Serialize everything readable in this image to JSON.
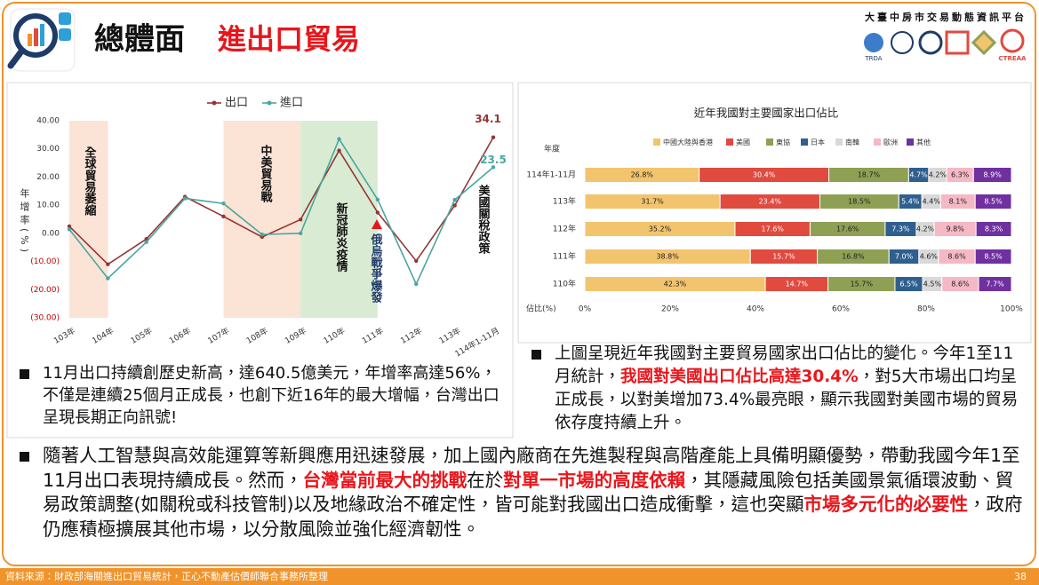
{
  "header": {
    "title": "總體面",
    "subtitle": "進出口貿易",
    "platform": "大臺中房市交易動態資訊平台",
    "logos": [
      "TRDA",
      "CTREAA"
    ]
  },
  "chart_data": [
    {
      "type": "line",
      "categories": [
        "103年",
        "104年",
        "105年",
        "106年",
        "107年",
        "108年",
        "109年",
        "110年",
        "111年",
        "112年",
        "113年",
        "114年1-11月"
      ],
      "y_label": "年增率(%)",
      "series": [
        {
          "name": "出口",
          "color": "#943634",
          "values": [
            2.5,
            -11,
            -2,
            13,
            6,
            -1.3,
            4.9,
            29.4,
            7.4,
            -9.8,
            9.9,
            34.1
          ],
          "value_labels": [
            null,
            null,
            null,
            null,
            null,
            null,
            null,
            null,
            null,
            null,
            null,
            "34.1"
          ]
        },
        {
          "name": "進口",
          "color": "#4aa6a0",
          "values": [
            1.4,
            -16,
            -3.1,
            12.4,
            10.6,
            -0.4,
            0,
            33.5,
            12,
            -18,
            11.9,
            23.5
          ],
          "value_labels": [
            null,
            null,
            null,
            null,
            null,
            null,
            null,
            null,
            null,
            null,
            null,
            "23.5"
          ]
        }
      ],
      "ylim": [
        -30,
        40
      ],
      "yticks": [
        {
          "value": 40,
          "label": "40.00"
        },
        {
          "value": 30,
          "label": "30.00"
        },
        {
          "value": 20,
          "label": "20.00"
        },
        {
          "value": 10,
          "label": "10.00"
        },
        {
          "value": 0,
          "label": "0.00"
        },
        {
          "value": -10,
          "label": "(10.00)"
        },
        {
          "value": -20,
          "label": "(20.00)"
        },
        {
          "value": -30,
          "label": "(30.00)"
        }
      ],
      "grid": false,
      "legend": "top",
      "annotations": [
        {
          "text": "全球貿易萎縮"
        },
        {
          "text": "中美貿易戰"
        },
        {
          "text": "新冠肺炎疫情"
        },
        {
          "text": "俄烏戰爭爆發"
        },
        {
          "text": "美國關稅政策"
        }
      ]
    },
    {
      "type": "stacked-bar-horizontal",
      "title": "近年我國對主要國家出口佔比",
      "y_label": "年度",
      "x_label": "佔比(%)",
      "categories": [
        "114年1-11月",
        "113年",
        "112年",
        "111年",
        "110年"
      ],
      "series": [
        {
          "name": "中國大陸與香港",
          "color": "#f2c46d",
          "values": [
            26.8,
            31.7,
            35.2,
            38.8,
            42.3
          ],
          "value_labels": [
            "26.8%",
            "31.7%",
            "35.2%",
            "38.8%",
            "42.3%"
          ]
        },
        {
          "name": "美國",
          "color": "#e04a3f",
          "values": [
            30.4,
            23.4,
            17.6,
            15.7,
            14.7
          ],
          "value_labels": [
            "30.4%",
            "23.4%",
            "17.6%",
            "15.7%",
            "14.7%"
          ]
        },
        {
          "name": "東協",
          "color": "#8fa054",
          "values": [
            18.7,
            18.5,
            17.6,
            16.8,
            15.7
          ],
          "value_labels": [
            "18.7%",
            "18.5%",
            "17.6%",
            "16.8%",
            "15.7%"
          ]
        },
        {
          "name": "日本",
          "color": "#2f5f8f",
          "values": [
            4.7,
            5.4,
            7.3,
            7.0,
            6.5
          ],
          "value_labels": [
            "4.7%",
            "5.4%",
            "7.3%",
            "7.0%",
            "6.5%"
          ]
        },
        {
          "name": "南韓",
          "color": "#d9d9d9",
          "values": [
            4.2,
            4.4,
            4.2,
            4.6,
            4.5
          ],
          "value_labels": [
            "4.2%",
            "4.4%",
            "4.2%",
            "4.6%",
            "4.5%"
          ]
        },
        {
          "name": "歐洲",
          "color": "#f5b8c4",
          "values": [
            6.3,
            8.1,
            9.8,
            8.6,
            8.6
          ],
          "value_labels": [
            "6.3%",
            "8.1%",
            "9.8%",
            "8.6%",
            "8.6%"
          ]
        },
        {
          "name": "其他",
          "color": "#7030a0",
          "values": [
            8.9,
            8.5,
            8.3,
            8.5,
            7.7
          ],
          "value_labels": [
            "8.9%",
            "8.5%",
            "8.3%",
            "8.5%",
            "7.7%"
          ]
        }
      ],
      "xlim": [
        0,
        100
      ],
      "xticks": [
        {
          "value": 0,
          "label": "0%"
        },
        {
          "value": 20,
          "label": "20%"
        },
        {
          "value": 40,
          "label": "40%"
        },
        {
          "value": 60,
          "label": "60%"
        },
        {
          "value": 80,
          "label": "80%"
        },
        {
          "value": 100,
          "label": "100%"
        }
      ],
      "legend": "top"
    }
  ],
  "bullets": [
    [
      {
        "text": "11月出口持續創歷史新高，達640.5億美元，年增率高達56%，不僅是連續25個月正成長，也創下近16年的最大增幅，台灣出口呈現長期正向訊號!",
        "emphasis": false
      }
    ],
    [
      {
        "text": "上圖呈現近年我國對主要貿易國家出口佔比的變化。今年1至11月統計，",
        "emphasis": false
      },
      {
        "text": "我國對美國出口佔比高達30.4%",
        "emphasis": true
      },
      {
        "text": "，對5大市場出口均呈正成長，以對美增加73.4%最亮眼，顯示我國對美國市場的貿易依存度持續上升。",
        "emphasis": false
      }
    ],
    [
      {
        "text": "隨著人工智慧與高效能運算等新興應用迅速發展，加上國內廠商在先進製程與高階產能上具備明顯優勢，帶動我國今年1至11月出口表現持續成長。然而，",
        "emphasis": false
      },
      {
        "text": "台灣當前最大的挑戰",
        "emphasis": true
      },
      {
        "text": "在於",
        "emphasis": false
      },
      {
        "text": "對單一市場的高度依賴",
        "emphasis": true
      },
      {
        "text": "，其隱藏風險包括美國景氣循環波動、貿易政策調整(如關稅或科技管制)以及地緣政治不確定性，皆可能對我國出口造成衝擊，這也突顯",
        "emphasis": false
      },
      {
        "text": "市場多元化的必要性",
        "emphasis": true
      },
      {
        "text": "，政府仍應積極擴展其他市場，以分散風險並強化經濟韌性。",
        "emphasis": false
      }
    ]
  ],
  "footer": {
    "source": "資料來源：財政部海關進出口貿易統計，正心不動產估價師聯合事務所整理",
    "page": "38"
  }
}
